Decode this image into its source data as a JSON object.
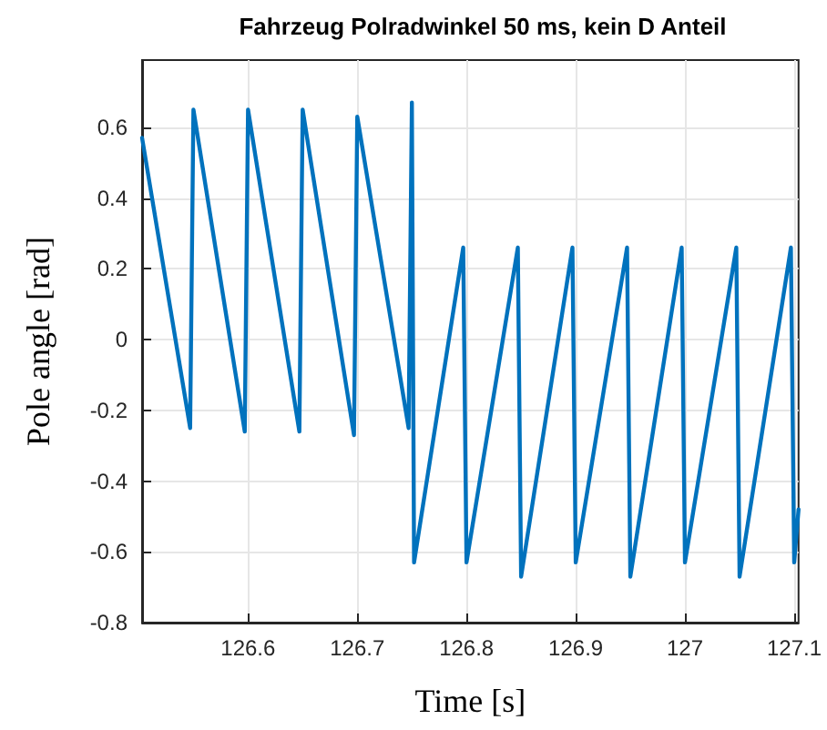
{
  "chart_data": {
    "type": "line",
    "title": "Fahrzeug Polradwinkel 50 ms, kein D Anteil",
    "xlabel": "Time [s]",
    "ylabel": "Pole angle [rad]",
    "x": [
      126.503,
      126.547,
      126.55,
      126.597,
      126.6,
      126.647,
      126.65,
      126.697,
      126.7,
      126.747,
      126.75,
      126.752,
      126.797,
      126.8,
      126.847,
      126.85,
      126.897,
      126.9,
      126.947,
      126.95,
      126.997,
      127.0,
      127.047,
      127.05,
      127.097,
      127.1,
      127.104
    ],
    "series": [
      {
        "color": "#0072bd",
        "values": [
          0.57,
          -0.25,
          0.65,
          -0.26,
          0.65,
          -0.26,
          0.65,
          -0.27,
          0.63,
          -0.25,
          0.67,
          -0.63,
          0.26,
          -0.63,
          0.26,
          -0.67,
          0.26,
          -0.63,
          0.26,
          -0.67,
          0.26,
          -0.63,
          0.26,
          -0.67,
          0.26,
          -0.63,
          -0.48
        ]
      }
    ],
    "xlim": [
      126.503,
      127.104
    ],
    "xticks": [
      126.6,
      126.7,
      126.8,
      126.9,
      127,
      127.1
    ],
    "ylim": [
      -0.8,
      0.79
    ],
    "yticks": [
      -0.8,
      -0.6,
      -0.4,
      -0.2,
      0,
      0.2,
      0.4,
      0.6
    ],
    "grid": true,
    "marker": "none",
    "line_style": "solid"
  }
}
